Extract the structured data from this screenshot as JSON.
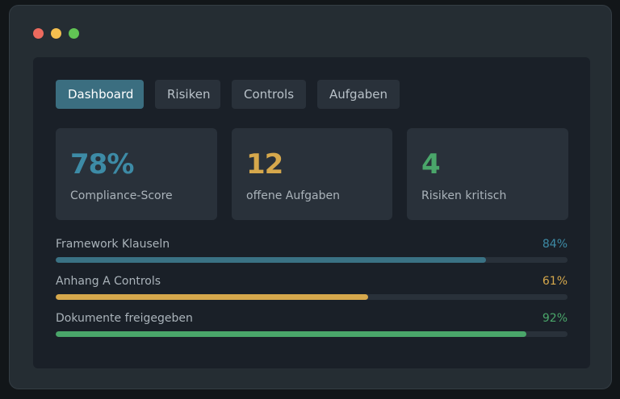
{
  "tabs": [
    {
      "label": "Dashboard",
      "active": true
    },
    {
      "label": "Risiken",
      "active": false
    },
    {
      "label": "Controls",
      "active": false
    },
    {
      "label": "Aufgaben",
      "active": false
    }
  ],
  "stats": [
    {
      "value": "78%",
      "label": "Compliance-Score",
      "color": "#3d8ba6"
    },
    {
      "value": "12",
      "label": "offene Aufgaben",
      "color": "#d6a84c"
    },
    {
      "value": "4",
      "label": "Risiken kritisch",
      "color": "#4aa66a"
    }
  ],
  "progress": [
    {
      "label": "Framework Klauseln",
      "percent_text": "84%",
      "fraction": 0.84,
      "color": "#3a7284"
    },
    {
      "label": "Anhang A Controls",
      "percent_text": "61%",
      "fraction": 0.61,
      "color": "#d6a84c"
    },
    {
      "label": "Dokumente freigegeben",
      "percent_text": "92%",
      "fraction": 0.92,
      "color": "#4aa66a"
    }
  ],
  "window_controls": [
    "close-icon",
    "minimize-icon",
    "maximize-icon"
  ]
}
